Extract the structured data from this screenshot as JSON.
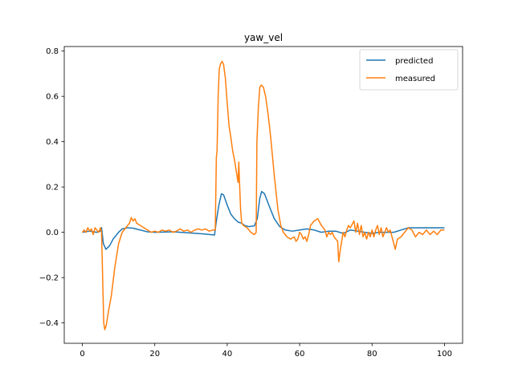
{
  "chart_data": {
    "type": "line",
    "title": "yaw_vel",
    "xlabel": "",
    "ylabel": "",
    "xlim": [
      -5,
      105
    ],
    "ylim": [
      -0.49,
      0.82
    ],
    "xticks": [
      0,
      20,
      40,
      60,
      80,
      100
    ],
    "yticks": [
      -0.4,
      -0.2,
      0.0,
      0.2,
      0.4,
      0.6,
      0.8
    ],
    "xtick_labels": [
      "0",
      "20",
      "40",
      "60",
      "80",
      "100"
    ],
    "ytick_labels": [
      "−0.4",
      "−0.2",
      "0.0",
      "0.2",
      "0.4",
      "0.6",
      "0.8"
    ],
    "grid": false,
    "legend": "top-right",
    "series": [
      {
        "name": "predicted",
        "color": "#1f77b4",
        "points": [
          [
            0,
            0.0
          ],
          [
            2,
            0.005
          ],
          [
            4,
            0.0
          ],
          [
            5,
            0.005
          ],
          [
            5.3,
            0.02
          ],
          [
            5.8,
            -0.05
          ],
          [
            6.5,
            -0.075
          ],
          [
            7.5,
            -0.06
          ],
          [
            8.5,
            -0.03
          ],
          [
            10,
            0.0
          ],
          [
            11,
            0.015
          ],
          [
            12.5,
            0.02
          ],
          [
            14,
            0.018
          ],
          [
            16,
            0.01
          ],
          [
            18,
            0.002
          ],
          [
            20,
            0.0
          ],
          [
            25,
            0.002
          ],
          [
            30,
            -0.003
          ],
          [
            34,
            -0.008
          ],
          [
            36.5,
            -0.012
          ],
          [
            37,
            0.05
          ],
          [
            37.7,
            0.12
          ],
          [
            38.4,
            0.17
          ],
          [
            39,
            0.165
          ],
          [
            40,
            0.12
          ],
          [
            41,
            0.08
          ],
          [
            42,
            0.06
          ],
          [
            43,
            0.045
          ],
          [
            44,
            0.04
          ],
          [
            44.8,
            0.03
          ],
          [
            46,
            0.025
          ],
          [
            47.5,
            0.028
          ],
          [
            48.3,
            0.06
          ],
          [
            49,
            0.15
          ],
          [
            49.5,
            0.18
          ],
          [
            50.3,
            0.17
          ],
          [
            51.5,
            0.12
          ],
          [
            53,
            0.06
          ],
          [
            54.5,
            0.025
          ],
          [
            56,
            0.01
          ],
          [
            58,
            0.005
          ],
          [
            60,
            0.01
          ],
          [
            62,
            0.015
          ],
          [
            64,
            0.01
          ],
          [
            66,
            0.0
          ],
          [
            68,
            0.005
          ],
          [
            70,
            0.005
          ],
          [
            72,
            -0.005
          ],
          [
            74,
            0.01
          ],
          [
            76,
            0.005
          ],
          [
            78,
            0.0
          ],
          [
            80,
            -0.005
          ],
          [
            82,
            0.0
          ],
          [
            84,
            0.0
          ],
          [
            86,
            0.0
          ],
          [
            88,
            0.01
          ],
          [
            90,
            0.02
          ],
          [
            95,
            0.02
          ],
          [
            100,
            0.02
          ]
        ]
      },
      {
        "name": "measured",
        "color": "#ff7f0e",
        "points": [
          [
            0,
            0.0
          ],
          [
            0.5,
            0.01
          ],
          [
            1,
            0.0
          ],
          [
            1.5,
            0.02
          ],
          [
            2,
            0.005
          ],
          [
            2.5,
            0.015
          ],
          [
            3,
            -0.01
          ],
          [
            3.5,
            0.02
          ],
          [
            4,
            0.01
          ],
          [
            4.5,
            0.0
          ],
          [
            5,
            0.02
          ],
          [
            5.3,
            0.0
          ],
          [
            5.6,
            -0.2
          ],
          [
            5.9,
            -0.4
          ],
          [
            6.2,
            -0.43
          ],
          [
            6.6,
            -0.41
          ],
          [
            7.2,
            -0.35
          ],
          [
            8,
            -0.28
          ],
          [
            9,
            -0.15
          ],
          [
            10,
            -0.05
          ],
          [
            11,
            0.0
          ],
          [
            12,
            0.02
          ],
          [
            13,
            0.04
          ],
          [
            13.5,
            0.065
          ],
          [
            14,
            0.05
          ],
          [
            14.5,
            0.06
          ],
          [
            15,
            0.04
          ],
          [
            16,
            0.03
          ],
          [
            17,
            0.02
          ],
          [
            18,
            0.01
          ],
          [
            19,
            0.0
          ],
          [
            20,
            0.005
          ],
          [
            21,
            0.0
          ],
          [
            22,
            0.01
          ],
          [
            23,
            0.005
          ],
          [
            24,
            0.01
          ],
          [
            25,
            0.0
          ],
          [
            26,
            0.005
          ],
          [
            27,
            0.015
          ],
          [
            28,
            0.005
          ],
          [
            29,
            0.01
          ],
          [
            30,
            0.0
          ],
          [
            31,
            0.01
          ],
          [
            32,
            0.015
          ],
          [
            33,
            0.01
          ],
          [
            34,
            0.015
          ],
          [
            35,
            0.005
          ],
          [
            36,
            0.01
          ],
          [
            36.7,
            0.01
          ],
          [
            37,
            0.33
          ],
          [
            37.2,
            0.36
          ],
          [
            37.5,
            0.6
          ],
          [
            37.8,
            0.72
          ],
          [
            38.2,
            0.745
          ],
          [
            38.6,
            0.755
          ],
          [
            39,
            0.74
          ],
          [
            39.5,
            0.68
          ],
          [
            40,
            0.57
          ],
          [
            40.5,
            0.47
          ],
          [
            41,
            0.42
          ],
          [
            41.5,
            0.36
          ],
          [
            42,
            0.32
          ],
          [
            42.5,
            0.27
          ],
          [
            42.8,
            0.24
          ],
          [
            43,
            0.22
          ],
          [
            43.2,
            0.31
          ],
          [
            43.4,
            0.22
          ],
          [
            43.7,
            0.1
          ],
          [
            44,
            0.04
          ],
          [
            44.5,
            0.03
          ],
          [
            45.5,
            0.02
          ],
          [
            46.5,
            0.0
          ],
          [
            47.5,
            -0.01
          ],
          [
            48,
            0.0
          ],
          [
            48.2,
            0.4
          ],
          [
            48.6,
            0.55
          ],
          [
            49,
            0.64
          ],
          [
            49.4,
            0.65
          ],
          [
            50,
            0.64
          ],
          [
            50.6,
            0.6
          ],
          [
            51.3,
            0.52
          ],
          [
            52,
            0.42
          ],
          [
            53,
            0.25
          ],
          [
            54,
            0.1
          ],
          [
            54.8,
            0.03
          ],
          [
            55.5,
            0.0
          ],
          [
            56.5,
            -0.02
          ],
          [
            57.5,
            -0.03
          ],
          [
            58.5,
            -0.02
          ],
          [
            59,
            -0.04
          ],
          [
            59.5,
            -0.03
          ],
          [
            60,
            0.0
          ],
          [
            60.5,
            -0.01
          ],
          [
            61,
            -0.03
          ],
          [
            61.5,
            -0.02
          ],
          [
            62,
            -0.04
          ],
          [
            62.5,
            -0.01
          ],
          [
            63,
            0.03
          ],
          [
            64,
            0.05
          ],
          [
            65,
            0.06
          ],
          [
            66,
            0.03
          ],
          [
            67,
            0.01
          ],
          [
            67.5,
            -0.02
          ],
          [
            68,
            0.0
          ],
          [
            68.5,
            -0.01
          ],
          [
            69,
            0.0
          ],
          [
            69.5,
            -0.02
          ],
          [
            70,
            -0.03
          ],
          [
            70.5,
            -0.04
          ],
          [
            70.8,
            -0.13
          ],
          [
            71.2,
            -0.08
          ],
          [
            72,
            0.0
          ],
          [
            72.5,
            -0.02
          ],
          [
            73,
            0.01
          ],
          [
            73.5,
            0.03
          ],
          [
            74,
            0.02
          ],
          [
            75,
            0.05
          ],
          [
            75.5,
            0.0
          ],
          [
            76,
            0.04
          ],
          [
            76.5,
            -0.01
          ],
          [
            77,
            0.03
          ],
          [
            77.5,
            -0.02
          ],
          [
            78,
            0.0
          ],
          [
            78.5,
            -0.03
          ],
          [
            79,
            0.0
          ],
          [
            79.5,
            -0.02
          ],
          [
            80,
            0.01
          ],
          [
            80.5,
            -0.02
          ],
          [
            81,
            0.01
          ],
          [
            81.5,
            0.03
          ],
          [
            82,
            -0.01
          ],
          [
            82.5,
            0.02
          ],
          [
            83,
            -0.02
          ],
          [
            83.5,
            0.0
          ],
          [
            84,
            0.02
          ],
          [
            84.5,
            0.0
          ],
          [
            85,
            0.01
          ],
          [
            85.5,
            -0.02
          ],
          [
            86,
            -0.05
          ],
          [
            86.4,
            -0.075
          ],
          [
            87,
            -0.03
          ],
          [
            88,
            -0.02
          ],
          [
            89,
            0.0
          ],
          [
            90,
            0.02
          ],
          [
            91,
            0.01
          ],
          [
            92,
            -0.02
          ],
          [
            93,
            0.0
          ],
          [
            94,
            -0.01
          ],
          [
            95,
            0.01
          ],
          [
            96,
            -0.01
          ],
          [
            97,
            0.005
          ],
          [
            98,
            -0.01
          ],
          [
            99,
            0.01
          ],
          [
            100,
            0.01
          ]
        ]
      }
    ]
  }
}
